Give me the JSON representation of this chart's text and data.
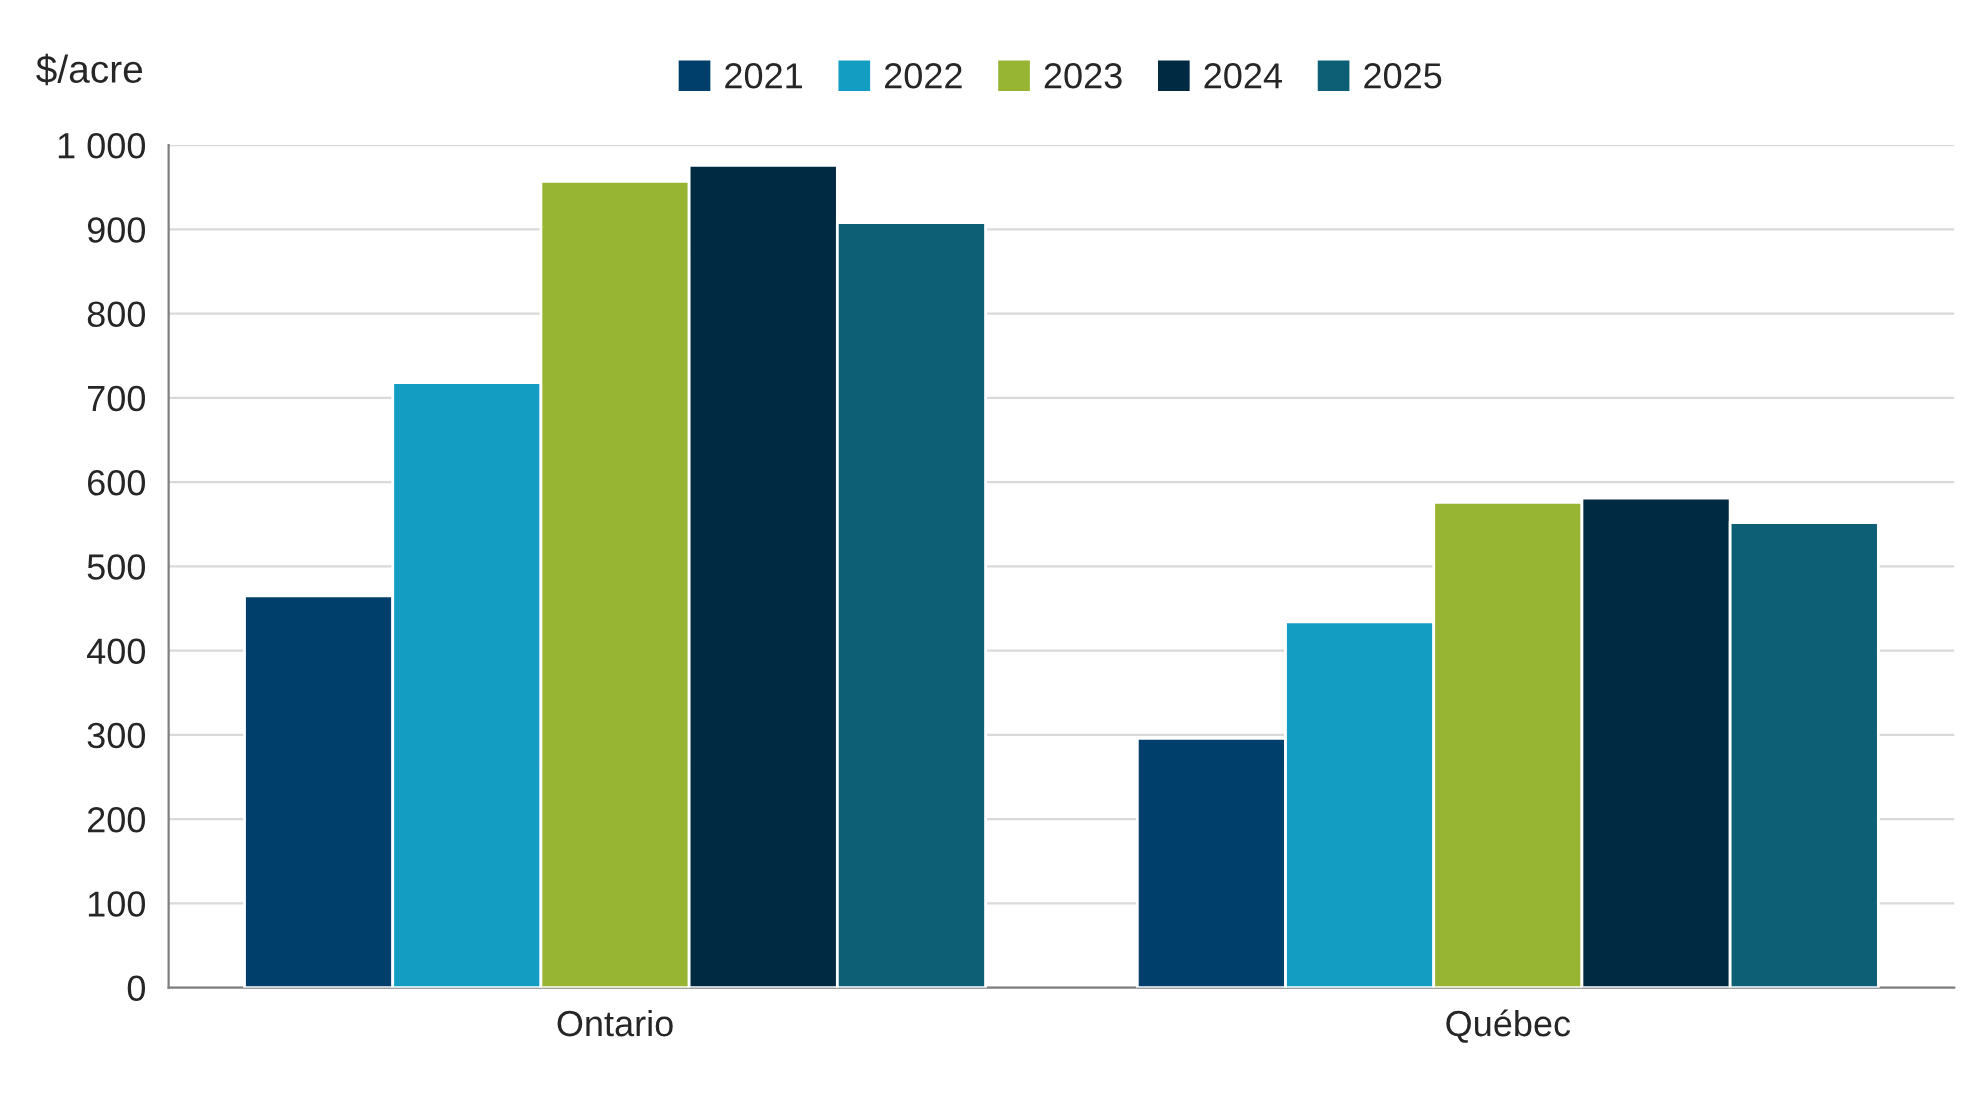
{
  "chart_data": {
    "type": "bar",
    "ylabel": "$/acre",
    "categories": [
      "Ontario",
      "Québec"
    ],
    "series": [
      {
        "name": "2021",
        "color": "#003f6b",
        "values": [
          465,
          296
        ]
      },
      {
        "name": "2022",
        "color": "#149dc3",
        "values": [
          718,
          434
        ]
      },
      {
        "name": "2023",
        "color": "#97b433",
        "values": [
          957,
          576
        ]
      },
      {
        "name": "2024",
        "color": "#002942",
        "values": [
          976,
          581
        ]
      },
      {
        "name": "2025",
        "color": "#0d5f75",
        "values": [
          908,
          552
        ]
      }
    ],
    "ylim": [
      0,
      1000
    ],
    "yticks": [
      0,
      100,
      200,
      300,
      400,
      500,
      600,
      700,
      800,
      900,
      {
        "value": 1000,
        "label": "1 000"
      }
    ],
    "grid": "y",
    "legend": "top"
  }
}
